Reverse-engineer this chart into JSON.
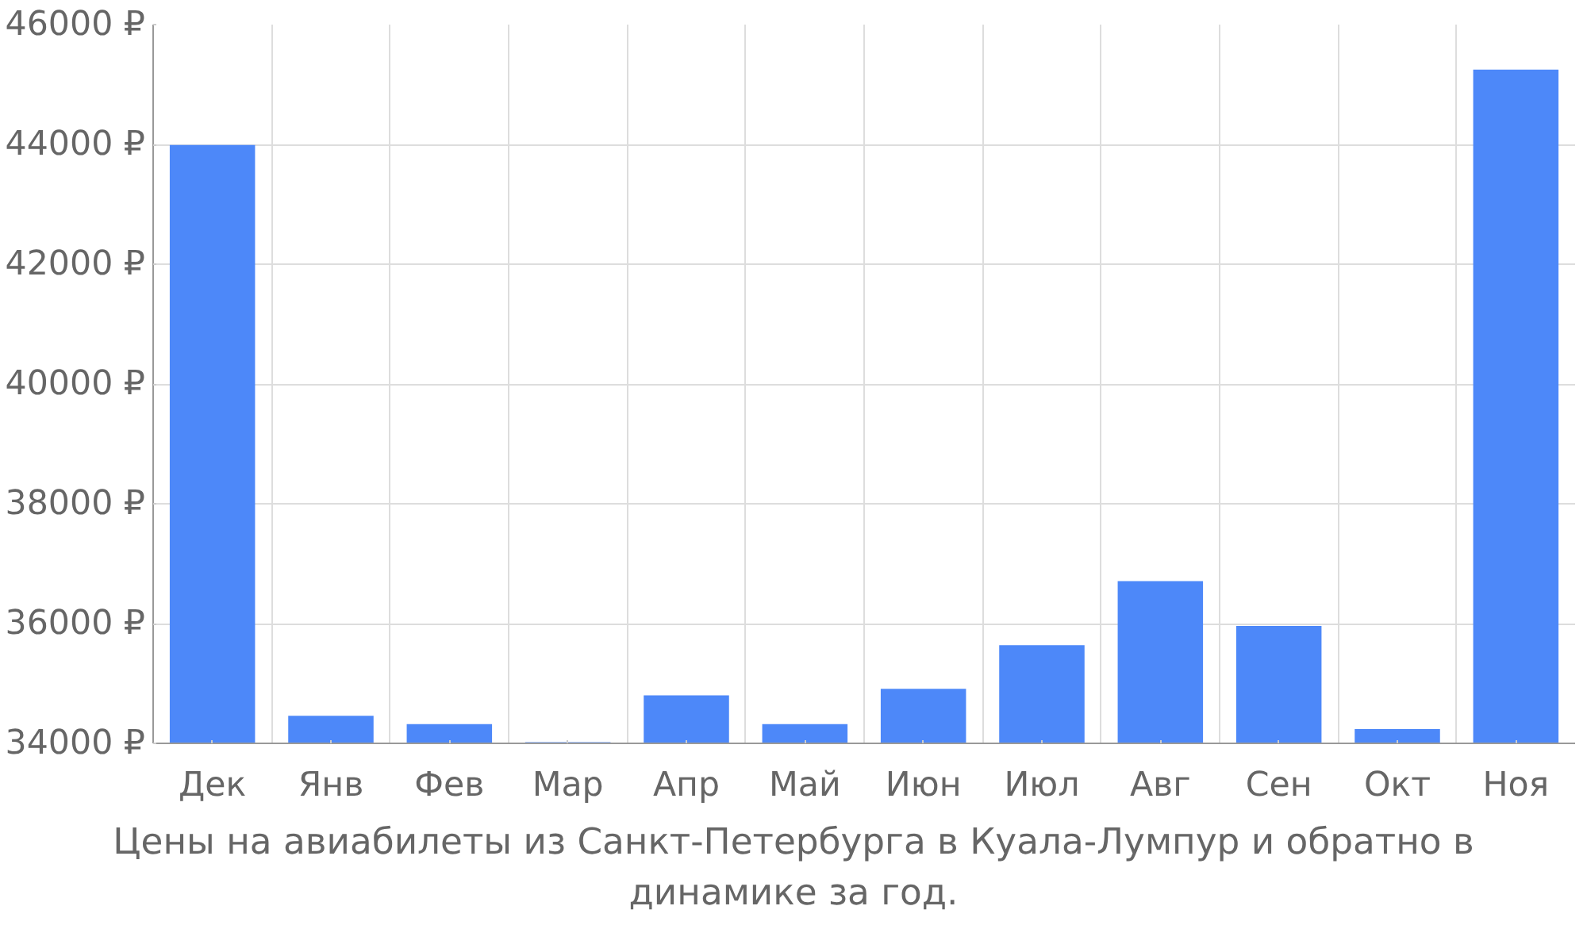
{
  "chart_data": {
    "type": "bar",
    "categories": [
      "Дек",
      "Янв",
      "Фев",
      "Мар",
      "Апр",
      "Май",
      "Июн",
      "Июл",
      "Авг",
      "Сен",
      "Окт",
      "Ноя"
    ],
    "values": [
      43990,
      34460,
      34320,
      34020,
      34800,
      34320,
      34910,
      35640,
      36710,
      35960,
      34240,
      45250
    ],
    "color": "#4d88f9",
    "ylim": [
      34000,
      46000
    ],
    "yticks": [
      {
        "value": 34000,
        "label": "34000 ₽"
      },
      {
        "value": 36000,
        "label": "36000 ₽"
      },
      {
        "value": 38000,
        "label": "38000 ₽"
      },
      {
        "value": 40000,
        "label": "40000 ₽"
      },
      {
        "value": 42000,
        "label": "42000 ₽"
      },
      {
        "value": 44000,
        "label": "44000 ₽"
      },
      {
        "value": 46000,
        "label": "46000 ₽"
      }
    ],
    "grid": true,
    "annotations": [
      "Цены на авиабилеты из Санкт-Петербурга в Куала-Лумпур и обратно в динамике за год."
    ]
  }
}
